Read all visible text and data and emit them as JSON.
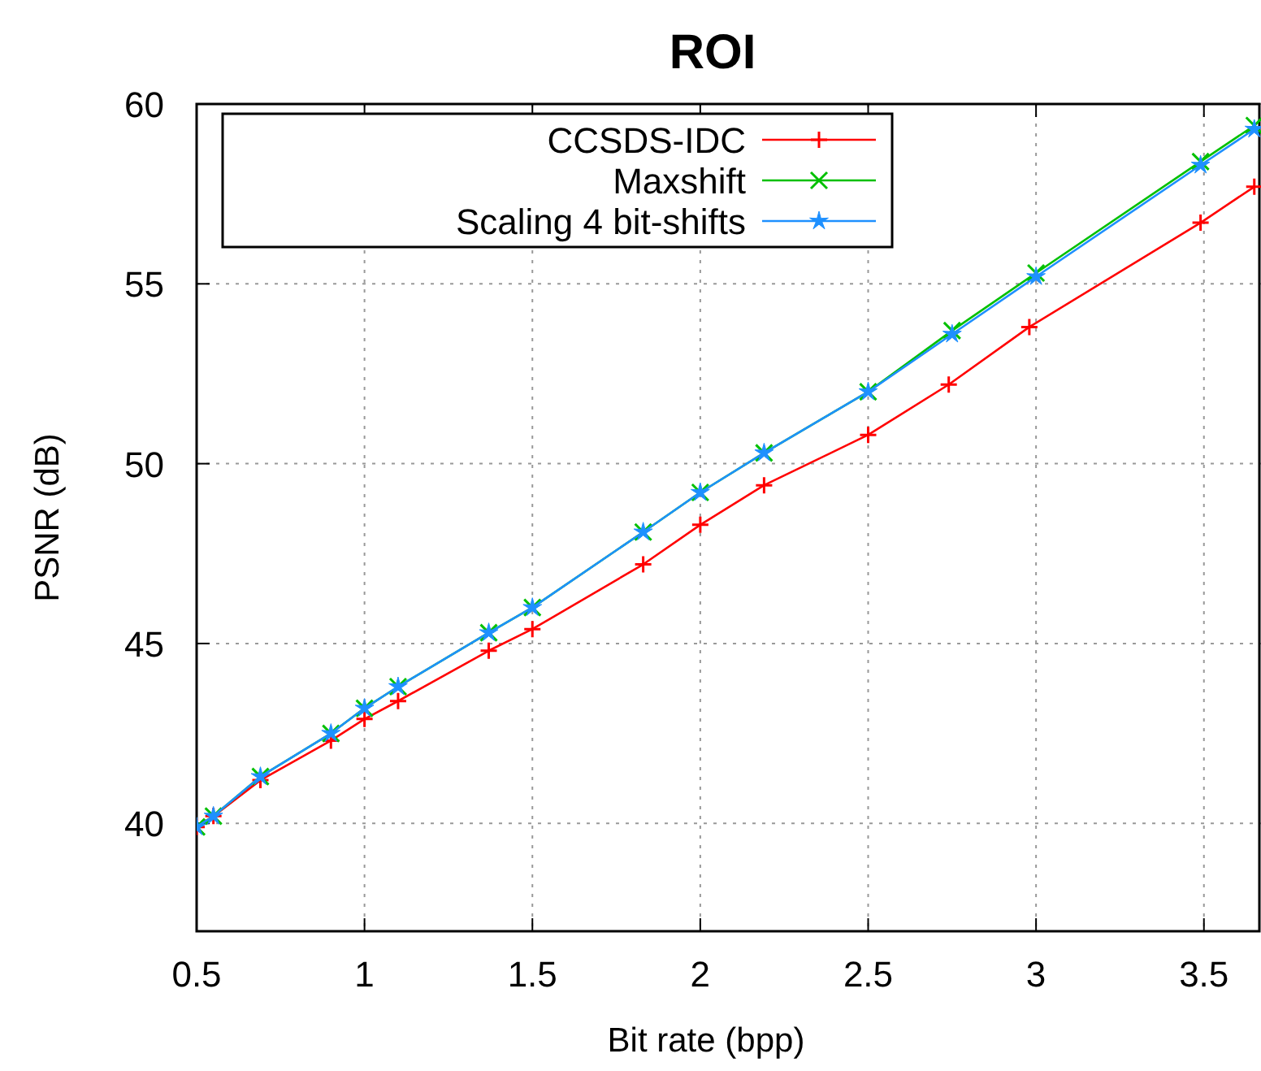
{
  "chart_data": {
    "type": "line",
    "title": "ROI",
    "xlabel": "Bit rate (bpp)",
    "ylabel": "PSNR (dB)",
    "xlim": [
      0.5,
      3.67
    ],
    "xticks": [
      0.5,
      1,
      1.5,
      2,
      2.5,
      3,
      3.5
    ],
    "ylim": [
      37,
      60
    ],
    "yticks": [
      40,
      45,
      50,
      55,
      60
    ],
    "grid": true,
    "legend": "top left",
    "series": [
      {
        "name": "CCSDS-IDC",
        "color": "#ff0000",
        "marker": "cross",
        "x": [
          0.5,
          0.55,
          0.69,
          0.9,
          1.0,
          1.1,
          1.37,
          1.5,
          1.83,
          2.0,
          2.19,
          2.5,
          2.74,
          2.98,
          3.49,
          3.65
        ],
        "values": [
          39.9,
          40.2,
          41.2,
          42.3,
          42.9,
          43.4,
          44.8,
          45.4,
          47.2,
          48.3,
          49.4,
          50.8,
          52.2,
          53.8,
          56.7,
          57.7
        ]
      },
      {
        "name": "Maxshift",
        "color": "#00c000",
        "marker": "cross",
        "x": [
          0.5,
          0.55,
          0.69,
          0.9,
          1.0,
          1.1,
          1.37,
          1.5,
          1.83,
          2.0,
          2.19,
          2.5,
          2.75,
          3.0,
          3.49,
          3.65
        ],
        "values": [
          39.9,
          40.2,
          41.3,
          42.5,
          43.2,
          43.8,
          45.3,
          46.0,
          48.1,
          49.2,
          50.3,
          52.0,
          53.7,
          55.3,
          58.4,
          59.4
        ]
      },
      {
        "name": "Scaling 4 bit-shifts",
        "color": "#1e90ff",
        "marker": "star",
        "x": [
          0.5,
          0.55,
          0.69,
          0.9,
          1.0,
          1.1,
          1.37,
          1.5,
          1.83,
          2.0,
          2.19,
          2.5,
          2.75,
          3.0,
          3.49,
          3.65
        ],
        "values": [
          39.9,
          40.2,
          41.3,
          42.5,
          43.2,
          43.8,
          45.3,
          46.0,
          48.1,
          49.2,
          50.3,
          52.0,
          53.6,
          55.2,
          58.3,
          59.3
        ]
      }
    ]
  }
}
